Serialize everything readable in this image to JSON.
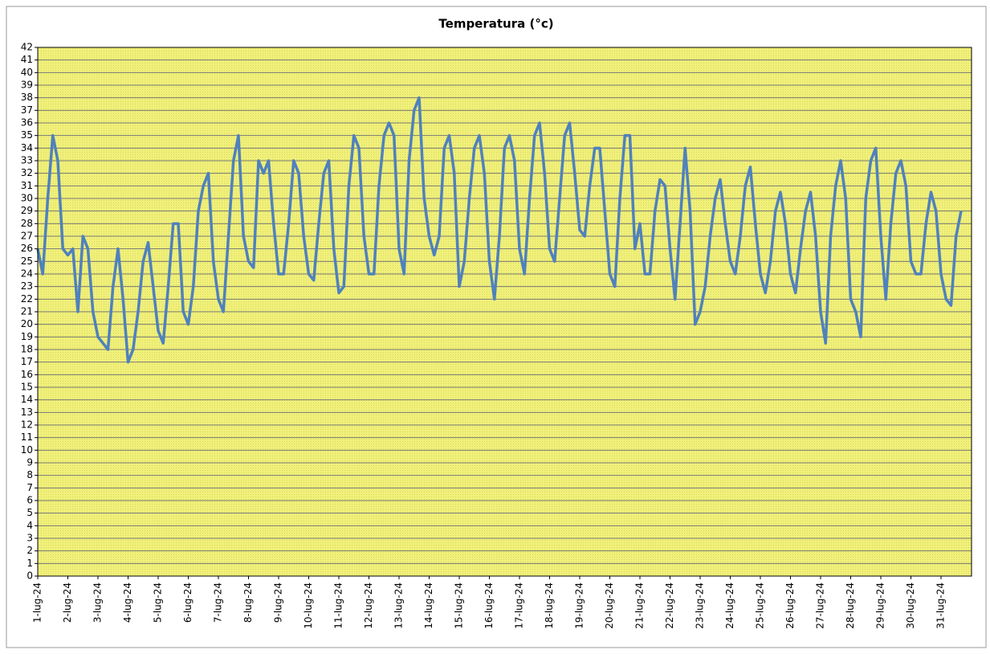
{
  "chart_data": {
    "type": "line",
    "title": "Temperatura (°c)",
    "categories": [
      "1-lug-24",
      null,
      null,
      null,
      null,
      null,
      "2-lug-24",
      null,
      null,
      null,
      null,
      null,
      "3-lug-24",
      null,
      null,
      null,
      null,
      null,
      "4-lug-24",
      null,
      null,
      null,
      null,
      null,
      "5-lug-24",
      null,
      null,
      null,
      null,
      null,
      "6-lug-24",
      null,
      null,
      null,
      null,
      null,
      "7-lug-24",
      null,
      null,
      null,
      null,
      null,
      "8-lug-24",
      null,
      null,
      null,
      null,
      null,
      "9-lug-24",
      null,
      null,
      null,
      null,
      null,
      "10-lug-24",
      null,
      null,
      null,
      null,
      null,
      "11-lug-24",
      null,
      null,
      null,
      null,
      null,
      "12-lug-24",
      null,
      null,
      null,
      null,
      null,
      "13-lug-24",
      null,
      null,
      null,
      null,
      null,
      "14-lug-24",
      null,
      null,
      null,
      null,
      null,
      "15-lug-24",
      null,
      null,
      null,
      null,
      null,
      "16-lug-24",
      null,
      null,
      null,
      null,
      null,
      "17-lug-24",
      null,
      null,
      null,
      null,
      null,
      "18-lug-24",
      null,
      null,
      null,
      null,
      null,
      "19-lug-24",
      null,
      null,
      null,
      null,
      null,
      "20-lug-24",
      null,
      null,
      null,
      null,
      null,
      "21-lug-24",
      null,
      null,
      null,
      null,
      null,
      "22-lug-24",
      null,
      null,
      null,
      null,
      null,
      "23-lug-24",
      null,
      null,
      null,
      null,
      null,
      "24-lug-24",
      null,
      null,
      null,
      null,
      null,
      "25-lug-24",
      null,
      null,
      null,
      null,
      null,
      "26-lug-24",
      null,
      null,
      null,
      null,
      null,
      "27-lug-24",
      null,
      null,
      null,
      null,
      null,
      "28-lug-24",
      null,
      null,
      null,
      null,
      null,
      "29-lug-24",
      null,
      null,
      null,
      null,
      null,
      "30-lug-24",
      null,
      null,
      null,
      null,
      null,
      "31-lug-24",
      null,
      null,
      null,
      null
    ],
    "series": [
      {
        "color": "#4f81bd",
        "values": [
          26,
          24,
          30,
          35,
          33,
          26,
          25.5,
          26,
          21,
          27,
          26,
          21,
          19,
          18.5,
          18,
          23,
          26,
          22,
          17,
          18,
          21,
          25,
          26.5,
          23,
          19.5,
          18.5,
          23,
          28,
          28,
          21,
          20,
          23,
          29,
          31,
          32,
          25,
          22,
          21,
          27,
          33,
          35,
          27,
          25,
          24.5,
          33,
          32,
          33,
          28,
          24,
          24,
          28,
          33,
          32,
          27,
          24,
          23.5,
          28,
          32,
          33,
          26,
          22.5,
          23,
          31,
          35,
          34,
          27,
          24,
          24,
          31,
          35,
          36,
          35,
          26,
          24,
          33,
          37,
          38,
          30,
          27,
          25.5,
          27,
          34,
          35,
          32,
          23,
          25,
          30,
          34,
          35,
          32,
          25,
          22,
          27,
          34,
          35,
          33,
          26,
          24,
          30,
          35,
          36,
          32,
          26,
          25,
          30,
          35,
          36,
          32,
          27.5,
          27,
          31,
          34,
          34,
          29,
          24,
          23,
          30,
          35,
          35,
          26,
          28,
          24,
          24,
          29,
          31.5,
          31,
          26,
          22,
          28,
          34,
          29,
          20,
          21,
          23,
          27,
          30,
          31.5,
          28,
          25,
          24,
          27,
          31,
          32.5,
          28,
          24,
          22.5,
          25,
          29,
          30.5,
          28,
          24,
          22.5,
          26,
          29,
          30.5,
          27,
          21,
          18.5,
          27,
          31,
          33,
          30,
          22,
          21,
          19,
          30,
          33,
          34,
          27,
          22,
          28,
          32,
          33,
          31,
          25,
          24,
          24,
          28,
          30.5,
          29,
          24,
          22,
          21.5,
          27,
          29
        ]
      }
    ],
    "ylim": [
      0,
      42
    ],
    "yticks": [
      0,
      1,
      2,
      3,
      4,
      5,
      6,
      7,
      8,
      9,
      10,
      11,
      12,
      13,
      14,
      15,
      16,
      17,
      18,
      19,
      20,
      21,
      22,
      23,
      24,
      25,
      26,
      27,
      28,
      29,
      30,
      31,
      32,
      33,
      34,
      35,
      36,
      37,
      38,
      39,
      40,
      41,
      42
    ],
    "grid": true,
    "plot_background": "#f0f07a"
  }
}
